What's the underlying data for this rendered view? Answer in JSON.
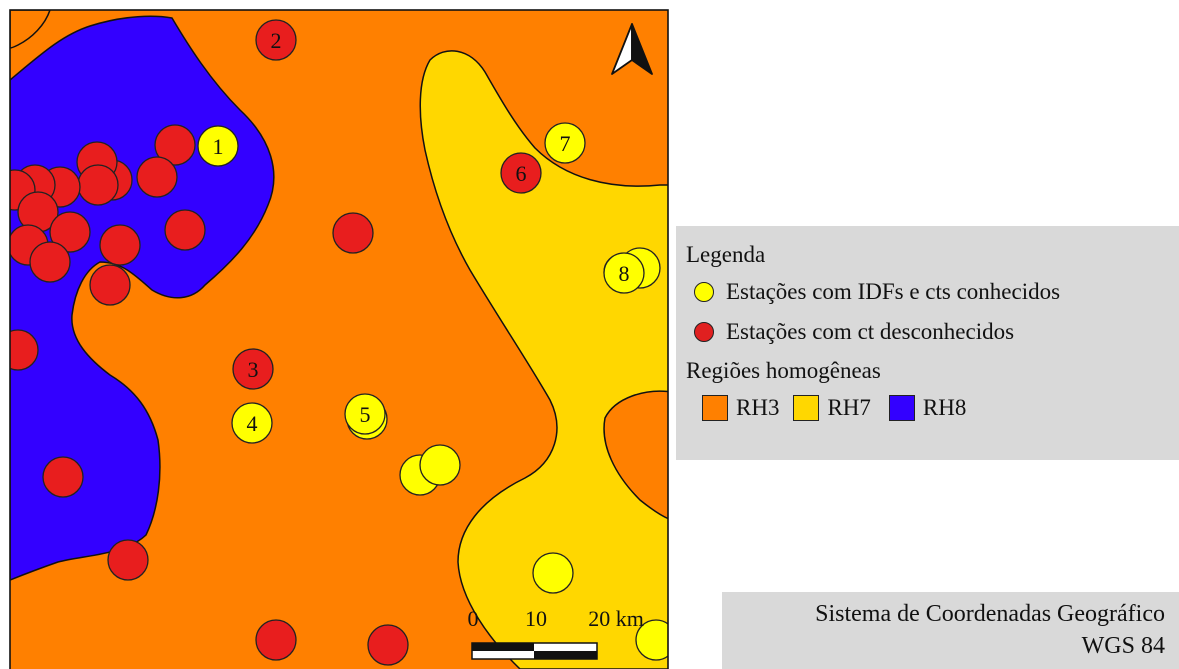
{
  "legend": {
    "title": "Legenda",
    "items": [
      {
        "label": "Estações com IDFs e cts conhecidos",
        "color": "#ffff00"
      },
      {
        "label": "Estações com ct desconhecidos",
        "color": "#e02020"
      }
    ],
    "regions_title": "Regiões homogêneas",
    "regions": [
      {
        "label": "RH3",
        "color": "#ff8000"
      },
      {
        "label": "RH7",
        "color": "#ffd700"
      },
      {
        "label": "RH8",
        "color": "#3300ff"
      }
    ]
  },
  "scale_bar": {
    "labels": [
      "0",
      "10",
      "20 km"
    ]
  },
  "north_arrow": {
    "icon": "north-arrow-icon"
  },
  "crs": {
    "line1": "Sistema de Coordenadas Geográfico",
    "line2": "WGS 84"
  },
  "stations": {
    "numbered": [
      {
        "label": "1",
        "type": "known"
      },
      {
        "label": "2",
        "type": "unknown"
      },
      {
        "label": "3",
        "type": "unknown"
      },
      {
        "label": "4",
        "type": "known"
      },
      {
        "label": "5",
        "type": "known"
      },
      {
        "label": "6",
        "type": "unknown"
      },
      {
        "label": "7",
        "type": "known"
      },
      {
        "label": "8",
        "type": "known"
      }
    ]
  }
}
